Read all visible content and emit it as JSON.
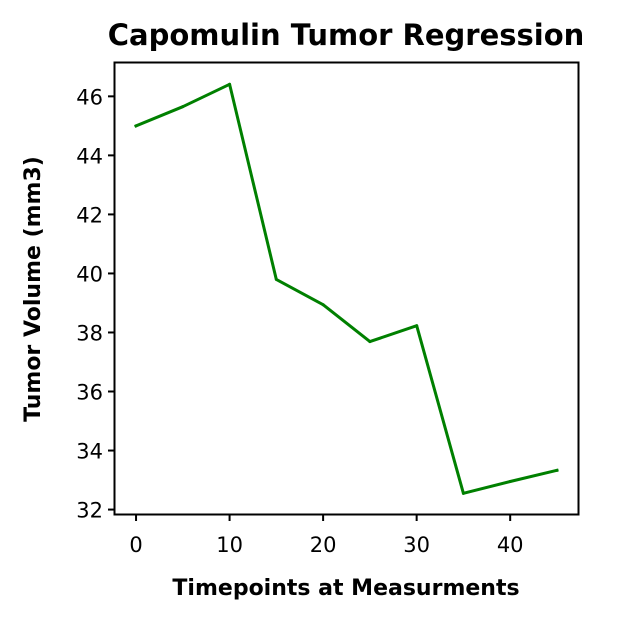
{
  "chart_data": {
    "type": "line",
    "title": "Capomulin Tumor Regression",
    "xlabel": "Timepoints at Measurments",
    "ylabel": "Tumor Volume (mm3)",
    "x": [
      0,
      5,
      10,
      15,
      20,
      25,
      30,
      35,
      40,
      45
    ],
    "series": [
      {
        "values": [
          45.0,
          45.65,
          46.41,
          39.8,
          38.94,
          37.69,
          38.23,
          32.55,
          32.95,
          33.33
        ],
        "color": "#008000"
      }
    ],
    "xlim": [
      -2.25,
      47.25
    ],
    "ylim": [
      31.85,
      47.13
    ],
    "xticks": [
      0,
      10,
      20,
      30,
      40
    ],
    "yticks": [
      32,
      34,
      36,
      38,
      40,
      42,
      44,
      46
    ],
    "grid": false,
    "legend": "none"
  }
}
